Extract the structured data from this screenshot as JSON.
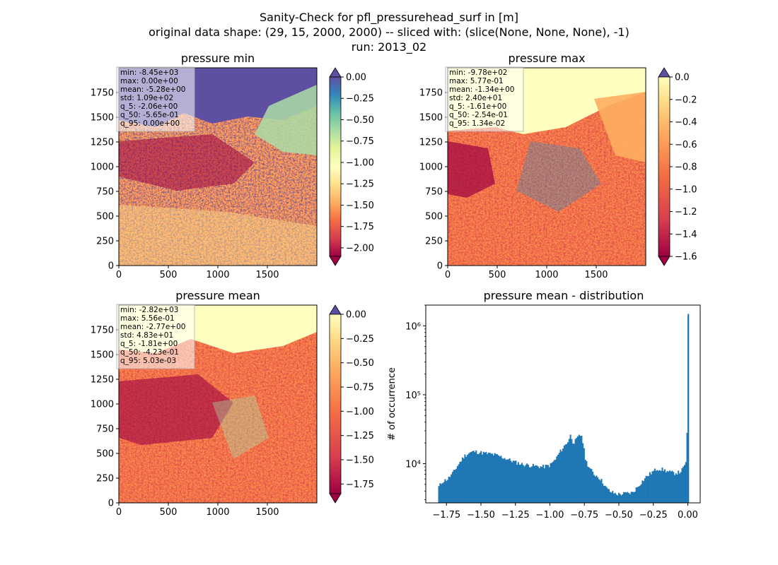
{
  "figure": {
    "title_lines": [
      "Sanity-Check for pfl_pressurehead_surf in [m]",
      "original data shape: (29, 15, 2000, 2000) -- sliced with: (slice(None, None, None), -1)",
      "run: 2013_02"
    ]
  },
  "colormap": [
    "#9e0142",
    "#d53e4f",
    "#f46d43",
    "#fdae61",
    "#fee08b",
    "#ffffbf",
    "#e6f598",
    "#abdda4",
    "#66c2a5",
    "#3288bd",
    "#5e4fa2"
  ],
  "chart_data": [
    {
      "type": "heatmap",
      "title": "pressure min",
      "xticks": [
        "0",
        "500",
        "1000",
        "1500"
      ],
      "xtick_values": [
        0,
        500,
        1000,
        1500
      ],
      "yticks": [
        "0",
        "250",
        "500",
        "750",
        "1000",
        "1250",
        "1500",
        "1750"
      ],
      "ytick_values": [
        0,
        250,
        500,
        750,
        1000,
        1250,
        1500,
        1750
      ],
      "xlim": [
        0,
        2000
      ],
      "ylim": [
        0,
        2000
      ],
      "colorbar": {
        "vmin": -2.1,
        "vmax": 0.0,
        "ticks": [
          0.0,
          -0.25,
          -0.5,
          -0.75,
          -1.0,
          -1.25,
          -1.5,
          -1.75,
          -2.0
        ],
        "tick_labels": [
          "0.00",
          "−0.25",
          "−0.50",
          "−0.75",
          "−1.00",
          "−1.25",
          "−1.50",
          "−1.75",
          "−2.00"
        ],
        "extend": "both"
      },
      "stats": [
        "min: -8.45e+03",
        "max: 0.00e+00",
        "mean: -5.28e+00",
        "std: 1.09e+02",
        "q_5: -2.06e+00",
        "q_50: -5.65e-01",
        "q_95: 0.00e+00"
      ]
    },
    {
      "type": "heatmap",
      "title": "pressure max",
      "xticks": [
        "0",
        "500",
        "1000",
        "1500"
      ],
      "xtick_values": [
        0,
        500,
        1000,
        1500
      ],
      "yticks": [
        "0",
        "250",
        "500",
        "750",
        "1000",
        "1250",
        "1500",
        "1750"
      ],
      "ytick_values": [
        0,
        250,
        500,
        750,
        1000,
        1250,
        1500,
        1750
      ],
      "xlim": [
        0,
        2000
      ],
      "ylim": [
        0,
        2000
      ],
      "colorbar": {
        "vmin": -1.6,
        "vmax": 0.0,
        "ticks": [
          0.0,
          -0.2,
          -0.4,
          -0.6,
          -0.8,
          -1.0,
          -1.2,
          -1.4,
          -1.6
        ],
        "tick_labels": [
          "0.0",
          "−0.2",
          "−0.4",
          "−0.6",
          "−0.8",
          "−1.0",
          "−1.2",
          "−1.4",
          "−1.6"
        ],
        "extend": "both"
      },
      "stats": [
        "min: -9.78e+02",
        "max: 5.77e-01",
        "mean: -1.34e+00",
        "std: 2.40e+01",
        "q_5: -1.61e+00",
        "q_50: -2.54e-01",
        "q_95: 1.34e-02"
      ]
    },
    {
      "type": "heatmap",
      "title": "pressure mean",
      "xticks": [
        "0",
        "500",
        "1000",
        "1500"
      ],
      "xtick_values": [
        0,
        500,
        1000,
        1500
      ],
      "yticks": [
        "0",
        "250",
        "500",
        "750",
        "1000",
        "1250",
        "1500",
        "1750"
      ],
      "ytick_values": [
        0,
        250,
        500,
        750,
        1000,
        1250,
        1500,
        1750
      ],
      "xlim": [
        0,
        2000
      ],
      "ylim": [
        0,
        2000
      ],
      "colorbar": {
        "vmin": -1.85,
        "vmax": 0.0,
        "ticks": [
          0.0,
          -0.25,
          -0.5,
          -0.75,
          -1.0,
          -1.25,
          -1.5,
          -1.75
        ],
        "tick_labels": [
          "0.00",
          "−0.25",
          "−0.50",
          "−0.75",
          "−1.00",
          "−1.25",
          "−1.50",
          "−1.75"
        ],
        "extend": "both"
      },
      "stats": [
        "min: -2.82e+03",
        "max: 5.56e-01",
        "mean: -2.77e+00",
        "std: 4.83e+01",
        "q_5: -1.81e+00",
        "q_50: -4.23e-01",
        "q_95: 5.03e-03"
      ]
    },
    {
      "type": "bar",
      "title": "pressure mean - distribution",
      "ylabel": "# of occurrence",
      "xlabel": "",
      "yscale": "log",
      "xlim": [
        -1.9,
        0.09
      ],
      "ylim": [
        2700,
        2000000
      ],
      "bin_width": 0.009,
      "xticks": [
        -1.75,
        -1.5,
        -1.25,
        -1.0,
        -0.75,
        -0.5,
        -0.25,
        0.0
      ],
      "xtick_labels": [
        "−1.75",
        "−1.50",
        "−1.25",
        "−1.00",
        "−0.75",
        "−0.50",
        "−0.25",
        "0.00"
      ],
      "yticks": [
        10000,
        100000,
        1000000
      ],
      "ytick_labels": [
        "10⁴",
        "10⁵",
        "10⁶"
      ],
      "bar_color": "#1f77b4",
      "profile_x": [
        -1.81,
        -1.78,
        -1.74,
        -1.7,
        -1.66,
        -1.62,
        -1.58,
        -1.55,
        -1.5,
        -1.45,
        -1.4,
        -1.35,
        -1.3,
        -1.25,
        -1.2,
        -1.15,
        -1.1,
        -1.05,
        -1.0,
        -0.96,
        -0.93,
        -0.9,
        -0.87,
        -0.85,
        -0.83,
        -0.81,
        -0.79,
        -0.77,
        -0.74,
        -0.71,
        -0.68,
        -0.65,
        -0.62,
        -0.59,
        -0.56,
        -0.53,
        -0.5,
        -0.45,
        -0.4,
        -0.35,
        -0.3,
        -0.26,
        -0.22,
        -0.18,
        -0.14,
        -0.1,
        -0.06,
        -0.04,
        -0.02,
        -0.012,
        -0.006,
        -0.002,
        0.0
      ],
      "profile_y": [
        4500,
        5500,
        6000,
        7500,
        10000,
        13000,
        14500,
        15000,
        14500,
        14000,
        13500,
        12500,
        11500,
        10500,
        9800,
        9500,
        9200,
        9000,
        9500,
        11500,
        14500,
        17500,
        21000,
        26000,
        20000,
        22000,
        25000,
        26000,
        11000,
        8500,
        7000,
        6500,
        5500,
        4400,
        3900,
        3700,
        3600,
        3700,
        3800,
        5000,
        6500,
        7500,
        8500,
        8200,
        7600,
        7300,
        7500,
        8200,
        9500,
        11500,
        22000,
        120000,
        1400000
      ]
    }
  ]
}
